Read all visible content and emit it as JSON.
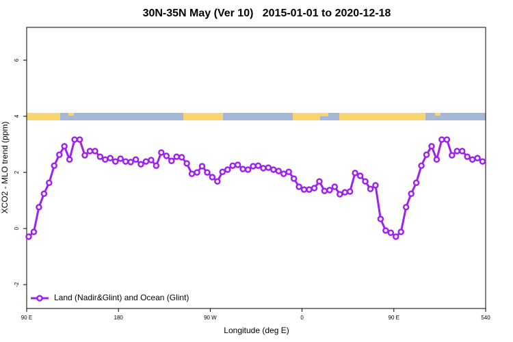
{
  "chart_data": {
    "type": "line",
    "title": "30N-35N May (Ver 10)   2015-01-01 to 2020-12-18",
    "x_label": "Longitude (deg E)",
    "y_label": "XCO2 - MLO trend (ppm)",
    "xlim": [
      90,
      540
    ],
    "ylim": [
      -2.85,
      7.17
    ],
    "xticks": [
      {
        "value": 90,
        "label": "90 E"
      },
      180,
      {
        "value": 270,
        "label": "90 W"
      },
      {
        "value": 360,
        "label": "0"
      },
      {
        "value": 450,
        "label": "90 E"
      },
      540
    ],
    "yticks": [
      -2,
      0,
      2,
      4,
      6
    ],
    "legend": "bottom-left",
    "series": [
      {
        "name": "Land (Nadir&Glint) and Ocean (Glint)",
        "color": "#a020f0",
        "x": [
          92,
          97,
          102,
          107,
          112,
          117,
          122,
          127,
          132,
          137,
          142,
          147,
          152,
          157,
          162,
          167,
          172,
          177,
          182,
          187,
          192,
          197,
          202,
          207,
          212,
          217,
          222,
          227,
          232,
          237,
          242,
          247,
          252,
          257,
          262,
          267,
          272,
          277,
          282,
          287,
          292,
          297,
          302,
          307,
          312,
          317,
          322,
          327,
          332,
          337,
          342,
          347,
          352,
          357,
          362,
          367,
          372,
          377,
          382,
          387,
          392,
          397,
          402,
          407,
          412,
          417,
          422,
          427,
          432,
          437,
          442,
          447,
          452,
          457,
          462,
          467,
          472,
          477,
          482,
          487,
          492,
          497,
          502,
          507,
          512,
          517,
          522,
          527,
          532,
          537
        ],
        "values": [
          -0.29,
          -0.12,
          0.76,
          1.24,
          1.63,
          2.24,
          2.63,
          2.93,
          2.46,
          3.17,
          3.17,
          2.61,
          2.76,
          2.76,
          2.56,
          2.46,
          2.51,
          2.39,
          2.49,
          2.39,
          2.37,
          2.46,
          2.29,
          2.39,
          2.44,
          2.24,
          2.71,
          2.59,
          2.41,
          2.56,
          2.54,
          2.32,
          1.95,
          2.0,
          2.22,
          2.0,
          1.83,
          1.68,
          2.02,
          2.1,
          2.24,
          2.27,
          2.12,
          2.1,
          2.22,
          2.24,
          2.15,
          2.17,
          2.1,
          2.05,
          1.95,
          2.02,
          1.78,
          1.49,
          1.39,
          1.39,
          1.44,
          1.68,
          1.34,
          1.37,
          1.49,
          1.22,
          1.29,
          1.32,
          1.98,
          1.88,
          1.68,
          1.41,
          1.54,
          0.34,
          -0.07,
          -0.15,
          -0.29,
          -0.12,
          0.76,
          1.24,
          1.63,
          2.24,
          2.63,
          2.93,
          2.46,
          3.17,
          3.17,
          2.61,
          2.76,
          2.76,
          2.56,
          2.46,
          2.51,
          2.39
        ]
      }
    ]
  }
}
